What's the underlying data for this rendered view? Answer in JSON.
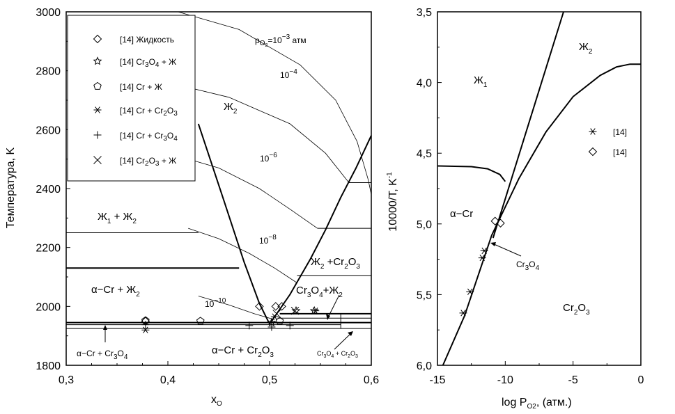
{
  "chart_data": [
    {
      "type": "line",
      "xlabel": "x",
      "xlabel_sub": "O",
      "ylabel": "Температура, K",
      "xlim": [
        0.3,
        0.6
      ],
      "ylim": [
        1800,
        3000
      ],
      "xticks": [
        "0,3",
        "0,4",
        "0,5",
        "0,6"
      ],
      "yticks": [
        "1800",
        "2000",
        "2200",
        "2400",
        "2600",
        "2800",
        "3000"
      ],
      "legend": [
        {
          "marker": "diamond",
          "label": "[14] Жидкость"
        },
        {
          "marker": "star",
          "label": "[14] Cr",
          "sub": "3",
          "label2": "O",
          "sub2": "4",
          "label3": " + Ж"
        },
        {
          "marker": "pentagon",
          "label": "[14] Cr + Ж"
        },
        {
          "marker": "asterisk",
          "label": "[14] Cr  + Cr",
          "sub": "2",
          "label2": "O",
          "sub2": "3",
          "label3": ""
        },
        {
          "marker": "plus",
          "label": "[14] Cr + Cr",
          "sub": "3",
          "label2": "O",
          "sub2": "4",
          "label3": ""
        },
        {
          "marker": "cross",
          "label": "[14] Cr",
          "sub": "2",
          "label2": "O",
          "sub2": "3",
          "label3": " + Ж"
        }
      ],
      "region_labels": {
        "zh2": "Ж",
        "zh2_sub": "2",
        "zh1zh2_a": "Ж",
        "zh1zh2_sub1": "1",
        "zh1zh2_b": " + Ж",
        "zh1zh2_sub2": "2",
        "acr_zh2_a": "α−Cr + Ж",
        "acr_zh2_sub": "2",
        "zh2cr2o3_a": "Ж",
        "zh2cr2o3_sub1": "2",
        "zh2cr2o3_b": " +Cr",
        "zh2cr2o3_sub2": "2",
        "zh2cr2o3_c": "O",
        "zh2cr2o3_sub3": "3",
        "cr3o4zh2_a": "Cr",
        "cr3o4zh2_sub1": "3",
        "cr3o4zh2_b": "O",
        "cr3o4zh2_sub2": "4",
        "cr3o4zh2_c": "+Ж",
        "cr3o4zh2_sub3": "2",
        "acr_cr2o3_a": "α−Cr + Cr",
        "acr_cr2o3_sub1": "2",
        "acr_cr2o3_b": "O",
        "acr_cr2o3_sub2": "3",
        "acr_cr3o4_a": "α−Cr + Cr",
        "acr_cr3o4_sub1": "3",
        "acr_cr3o4_b": "O",
        "acr_cr3o4_sub2": "4",
        "cr3o4_cr2o3_a": "Cr",
        "cr3o4_cr2o3_s1": "3",
        "cr3o4_cr2o3_b": "O",
        "cr3o4_cr2o3_s2": "4",
        "cr3o4_cr2o3_c": " + Cr",
        "cr3o4_cr2o3_s3": "2",
        "cr3o4_cr2o3_d": "O",
        "cr3o4_cr2o3_s4": "3"
      },
      "isobar_labels": {
        "p_main": "p",
        "p_sub": "O",
        "p_sub2": "2",
        "p_eq": "=10",
        "p_exp": "−3",
        "p_unit": " атм",
        "i4_base": "10",
        "i4_exp": "−4",
        "i6_base": "10",
        "i6_exp": "−6",
        "i8_base": "10",
        "i8_exp": "−8",
        "i10_base": "10",
        "i10_exp": "−10"
      },
      "isobars": [
        {
          "name": "10^-3",
          "points": [
            [
              0.41,
              3000
            ],
            [
              0.47,
              2940
            ],
            [
              0.53,
              2820
            ],
            [
              0.565,
              2700
            ],
            [
              0.586,
              2560
            ],
            [
              0.597,
              2430
            ],
            [
              0.6,
              2380
            ]
          ]
        },
        {
          "name": "10^-4",
          "points": [
            [
              0.4,
              2760
            ],
            [
              0.46,
              2710
            ],
            [
              0.52,
              2620
            ],
            [
              0.555,
              2520
            ],
            [
              0.578,
              2420
            ]
          ]
        },
        {
          "name": "10^-6",
          "points": [
            [
              0.41,
              2510
            ],
            [
              0.45,
              2470
            ],
            [
              0.49,
              2400
            ],
            [
              0.52,
              2330
            ],
            [
              0.547,
              2265
            ]
          ]
        },
        {
          "name": "10^-8",
          "points": [
            [
              0.42,
              2265
            ],
            [
              0.45,
              2230
            ],
            [
              0.48,
              2180
            ],
            [
              0.505,
              2130
            ],
            [
              0.527,
              2080
            ]
          ]
        },
        {
          "name": "10^-10",
          "points": [
            [
              0.43,
              2035
            ],
            [
              0.46,
              2005
            ],
            [
              0.485,
              1975
            ],
            [
              0.505,
              1955
            ]
          ]
        }
      ],
      "liquidus_left": [
        [
          0.43,
          2620
        ],
        [
          0.455,
          2360
        ],
        [
          0.475,
          2150
        ],
        [
          0.49,
          2010
        ],
        [
          0.5,
          1940
        ]
      ],
      "liquidus_right": [
        [
          0.5,
          1940
        ],
        [
          0.52,
          2040
        ],
        [
          0.54,
          2160
        ],
        [
          0.555,
          2260
        ],
        [
          0.57,
          2370
        ],
        [
          0.585,
          2470
        ],
        [
          0.6,
          2580
        ]
      ],
      "horizontals": [
        {
          "T": 2250,
          "x": [
            0.3,
            0.43
          ],
          "bold": false
        },
        {
          "T": 2130,
          "x": [
            0.3,
            0.47
          ],
          "bold": true
        },
        {
          "T": 2420,
          "x": [
            0.578,
            0.6
          ],
          "bold": false
        },
        {
          "T": 2265,
          "x": [
            0.547,
            0.6
          ],
          "bold": false
        },
        {
          "T": 2105,
          "x": [
            0.527,
            0.6
          ],
          "bold": false
        },
        {
          "T": 1975,
          "x": [
            0.51,
            0.6
          ],
          "bold": true
        },
        {
          "T": 1960,
          "x": [
            0.508,
            0.6
          ],
          "bold": false
        },
        {
          "T": 1945,
          "x": [
            0.3,
            0.6
          ],
          "bold": true
        },
        {
          "T": 1938,
          "x": [
            0.3,
            0.57
          ],
          "bold": false
        },
        {
          "T": 1925,
          "x": [
            0.3,
            0.6
          ],
          "bold": false
        }
      ],
      "verticals": [
        {
          "x": 0.57,
          "T": [
            1925,
            1975
          ]
        }
      ],
      "points": {
        "diamond": [
          [
            0.378,
            1950
          ],
          [
            0.49,
            2000
          ],
          [
            0.506,
            2000
          ],
          [
            0.512,
            2000
          ]
        ],
        "star": [
          [
            0.502,
            1945
          ],
          [
            0.526,
            1985
          ],
          [
            0.544,
            1985
          ]
        ],
        "pentagon": [
          [
            0.378,
            1952
          ],
          [
            0.432,
            1950
          ],
          [
            0.51,
            1950
          ]
        ],
        "asterisk": [
          [
            0.378,
            1920
          ],
          [
            0.505,
            1965
          ],
          [
            0.545,
            1985
          ]
        ],
        "plus": [
          [
            0.378,
            1938
          ],
          [
            0.48,
            1935
          ],
          [
            0.502,
            1930
          ],
          [
            0.52,
            1935
          ]
        ],
        "cross": [
          [
            0.507,
            1975
          ],
          [
            0.525,
            1985
          ]
        ]
      }
    },
    {
      "type": "line",
      "xlabel": "log P",
      "xlabel_sub": "O2",
      "xlabel_unit": ", (атм.)",
      "ylabel": "10000/T, K",
      "ylabel_exp": "-1",
      "xlim": [
        -15,
        0
      ],
      "ylim": [
        3.5,
        6.0
      ],
      "y_inverted": true,
      "xticks": [
        "-15",
        "-10",
        "-5",
        "0"
      ],
      "yticks": [
        "3,5",
        "4,0",
        "4,5",
        "5,0",
        "5,5",
        "6,0"
      ],
      "legend": [
        {
          "marker": "asterisk",
          "label": "[14]"
        },
        {
          "marker": "diamond",
          "label": "[14]"
        }
      ],
      "region_labels": {
        "zh1": "Ж",
        "zh1_sub": "1",
        "zh2": "Ж",
        "zh2_sub": "2",
        "acr": "α−Cr",
        "cr2o3": "Cr",
        "cr2o3_s1": "2",
        "cr2o3_b": "O",
        "cr2o3_s2": "3",
        "cr3o4": "Cr",
        "cr3o4_s1": "3",
        "cr3o4_b": "O",
        "cr3o4_s2": "4"
      },
      "lines": [
        {
          "name": "steep",
          "points": [
            [
              -10.9,
              5.1
            ],
            [
              -5.7,
              3.5
            ]
          ]
        },
        {
          "name": "main",
          "points": [
            [
              -14.6,
              6.0
            ],
            [
              -13.0,
              5.65
            ],
            [
              -11.0,
              5.08
            ],
            [
              -9.0,
              4.68
            ],
            [
              -7.0,
              4.35
            ],
            [
              -5.0,
              4.1
            ],
            [
              -3.0,
              3.95
            ],
            [
              -1.8,
              3.89
            ],
            [
              -0.8,
              3.87
            ],
            [
              0,
              3.87
            ]
          ]
        },
        {
          "name": "alpha",
          "points": [
            [
              -15,
              4.59
            ],
            [
              -12.5,
              4.595
            ],
            [
              -11.3,
              4.61
            ],
            [
              -10.4,
              4.65
            ],
            [
              -10.0,
              4.7
            ]
          ]
        }
      ],
      "points": {
        "asterisk": [
          [
            -13.1,
            5.63
          ],
          [
            -12.6,
            5.48
          ],
          [
            -11.7,
            5.24
          ],
          [
            -11.55,
            5.19
          ]
        ],
        "diamond": [
          [
            -10.75,
            4.98
          ],
          [
            -10.35,
            4.995
          ]
        ]
      }
    }
  ]
}
